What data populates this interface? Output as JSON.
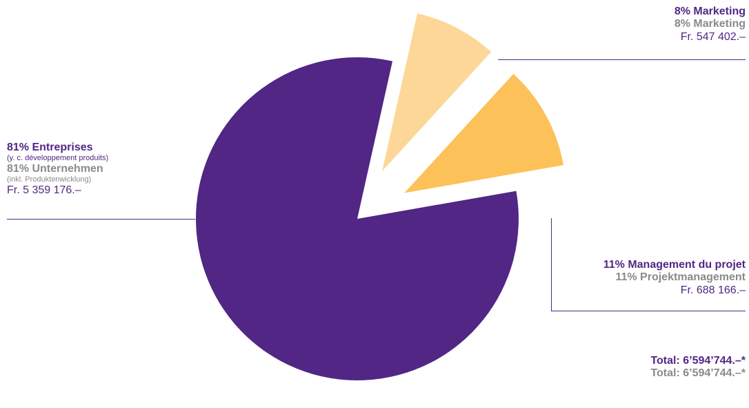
{
  "chart_data": {
    "type": "pie",
    "total": {
      "fr": "Total: 6’594’744.–*",
      "de": "Total: 6’594’744.–*"
    },
    "slices": [
      {
        "key": "marketing",
        "value": 547402,
        "percent": 8,
        "color": "#fdd797",
        "exploded": true,
        "label_fr": "8% Marketing",
        "label_de": "8% Marketing",
        "amount": "Fr. 547 402.–"
      },
      {
        "key": "management",
        "value": 688166,
        "percent": 11,
        "color": "#fcc158",
        "exploded": true,
        "label_fr": "11% Management du projet",
        "label_de": "11% Projektmanagement",
        "amount": "Fr. 688 166.–"
      },
      {
        "key": "entreprises",
        "value": 5359176,
        "percent": 81,
        "color": "#512684",
        "exploded": false,
        "label_fr": "81% Entreprises",
        "sub_fr": "(y. c. développement produits)",
        "label_de": "81% Unternehmen",
        "sub_de": "(inkl. Produktenwicklung)",
        "amount": "Fr. 5 359 176.–"
      }
    ]
  },
  "colors": {
    "accent": "#512684",
    "secondary_text": "#8a8a8a"
  }
}
